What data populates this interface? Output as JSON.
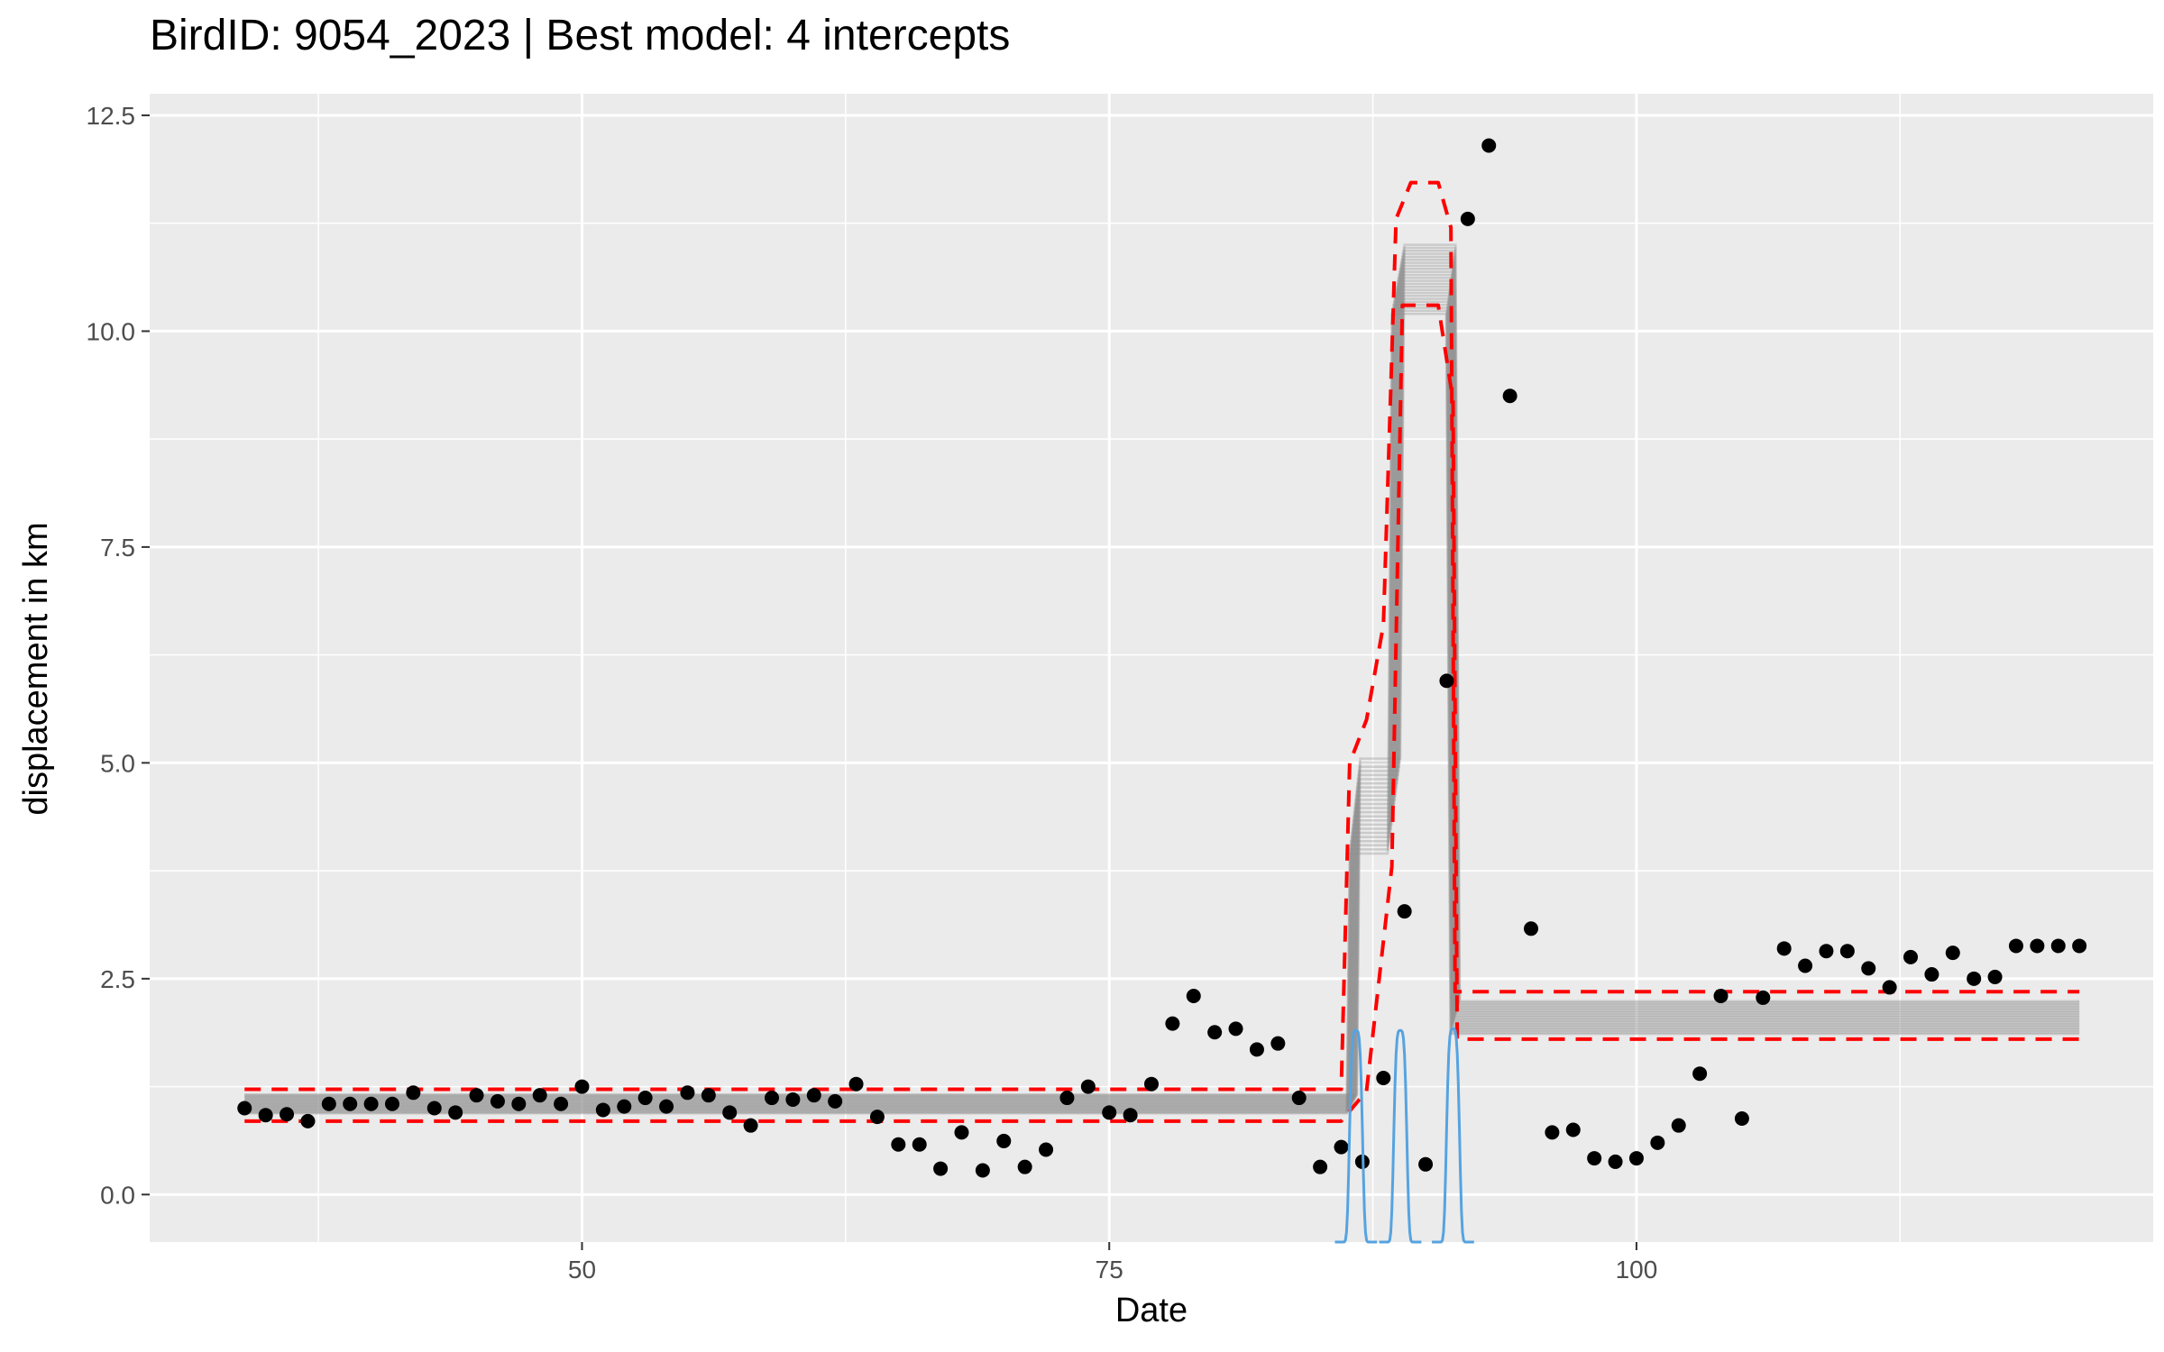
{
  "chart_data": {
    "type": "scatter",
    "title": "BirdID: 9054_2023 | Best model: 4 intercepts",
    "xlabel": "Date",
    "ylabel": "displacement in km",
    "xlim": [
      29.5,
      124.5
    ],
    "ylim": [
      -0.55,
      12.75
    ],
    "x_ticks": [
      50,
      75,
      100
    ],
    "x_tick_labels": [
      "50",
      "75",
      "100"
    ],
    "y_ticks": [
      0,
      2.5,
      5,
      7.5,
      10,
      12.5
    ],
    "y_tick_labels": [
      "0.0",
      "2.5",
      "5.0",
      "7.5",
      "10.0",
      "12.5"
    ],
    "grid": true,
    "colors": {
      "panel": "#ebebeb",
      "grid": "#ffffff",
      "points": "#000000",
      "model_lines": "#8c8c8c",
      "credible_band": "#ff0000",
      "changepoint_density": "#56a3e0"
    },
    "series": [
      {
        "type": "scatter",
        "x": [
          34,
          35,
          36,
          37,
          38,
          39,
          40,
          41,
          42,
          43,
          44,
          45,
          46,
          47,
          48,
          49,
          50,
          51,
          52,
          53,
          54,
          55,
          56,
          57,
          58,
          59,
          60,
          61,
          62,
          63,
          64,
          65,
          66,
          67,
          68,
          69,
          70,
          71,
          72,
          73,
          74,
          75,
          76,
          77,
          78,
          79,
          80,
          81,
          82,
          83,
          84,
          85,
          86,
          87,
          88,
          89,
          90,
          91,
          92,
          93,
          94,
          95,
          96,
          97,
          98,
          99,
          100,
          101,
          102,
          103,
          104,
          105,
          106,
          107,
          108,
          109,
          110,
          111,
          112,
          113,
          114,
          115,
          116,
          117,
          118,
          119,
          120,
          121
        ],
        "y": [
          1.0,
          0.92,
          0.93,
          0.85,
          1.05,
          1.05,
          1.05,
          1.05,
          1.18,
          1.0,
          0.95,
          1.15,
          1.08,
          1.05,
          1.15,
          1.05,
          1.25,
          0.98,
          1.02,
          1.12,
          1.02,
          1.18,
          1.15,
          0.95,
          0.8,
          1.12,
          1.1,
          1.15,
          1.08,
          1.28,
          0.9,
          0.58,
          0.58,
          0.3,
          0.72,
          0.28,
          0.62,
          0.32,
          0.52,
          1.12,
          1.25,
          0.95,
          0.92,
          1.28,
          1.98,
          2.3,
          1.88,
          1.92,
          1.68,
          1.75,
          1.12,
          0.32,
          0.55,
          0.38,
          1.35,
          3.28,
          0.35,
          5.95,
          11.3,
          12.15,
          9.25,
          3.08,
          0.72,
          0.75,
          0.42,
          0.38,
          0.42,
          0.6,
          0.8,
          1.4,
          2.3,
          0.88,
          2.28,
          2.85,
          2.65,
          2.82,
          2.82,
          2.62,
          2.4,
          2.75,
          2.55,
          2.8,
          2.5,
          2.52,
          2.88,
          2.88,
          2.88,
          2.88
        ]
      }
    ],
    "model_fit": {
      "segments": [
        {
          "x": [
            34,
            86.5
          ],
          "y": [
            1.05,
            1.05
          ]
        },
        {
          "x": [
            86.5,
            88.5
          ],
          "y": [
            4.5,
            4.5
          ]
        },
        {
          "x": [
            88.5,
            91.2
          ],
          "y": [
            10.6,
            10.6
          ]
        },
        {
          "x": [
            91.2,
            121
          ],
          "y": [
            2.05,
            2.05
          ]
        }
      ],
      "credible_band": {
        "upper": [
          [
            34,
            1.22
          ],
          [
            86,
            1.22
          ],
          [
            86.4,
            5.0
          ],
          [
            87.2,
            5.5
          ],
          [
            88,
            6.6
          ],
          [
            88.6,
            11.3
          ],
          [
            89.3,
            11.72
          ],
          [
            90.6,
            11.72
          ],
          [
            91.2,
            11.2
          ],
          [
            91.4,
            2.35
          ],
          [
            121,
            2.35
          ]
        ],
        "lower": [
          [
            34,
            0.85
          ],
          [
            86,
            0.85
          ],
          [
            87.2,
            1.2
          ],
          [
            88.4,
            3.8
          ],
          [
            88.9,
            10.3
          ],
          [
            90.6,
            10.3
          ],
          [
            91.3,
            9.2
          ],
          [
            91.5,
            1.8
          ],
          [
            121,
            1.8
          ]
        ]
      }
    },
    "changepoint_density": {
      "peaks": [
        {
          "x": 86.7,
          "y": 1.9
        },
        {
          "x": 88.8,
          "y": 1.9
        },
        {
          "x": 91.3,
          "y": 1.92
        }
      ]
    }
  }
}
